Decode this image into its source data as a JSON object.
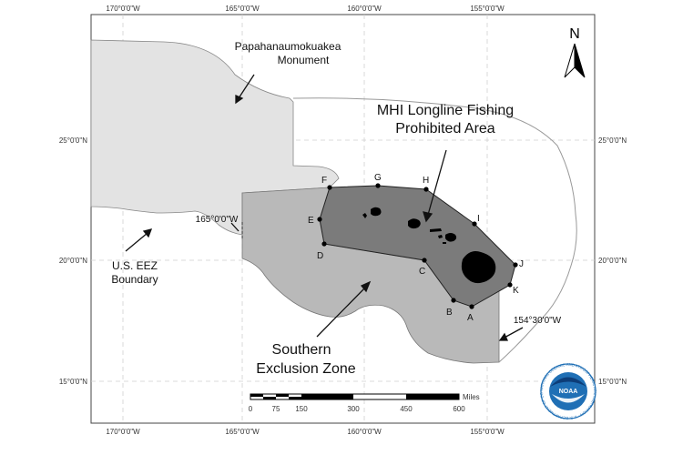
{
  "map": {
    "top_longitude_labels": [
      "170°0'0\"W",
      "165°0'0\"W",
      "160°0'0\"W",
      "155°0'0\"W"
    ],
    "bottom_longitude_labels": [
      "170°0'0\"W",
      "165°0'0\"W",
      "160°0'0\"W",
      "155°0'0\"W"
    ],
    "left_latitude_labels": [
      "25°0'0\"N",
      "20°0'0\"N",
      "15°0'0\"N"
    ],
    "right_latitude_labels": [
      "25°0'0\"N",
      "20°0'0\"N",
      "15°0'0\"N"
    ],
    "north_arrow_label": "N",
    "callouts": {
      "monument_line1": "Papahanaumokuakea",
      "monument_line2": "Monument",
      "mhi_line1": "MHI Longline Fishing",
      "mhi_line2": "Prohibited Area",
      "eez_line1": "U.S. EEZ",
      "eez_line2": "Boundary",
      "sez_line1": "Southern",
      "sez_line2": "Exclusion Zone",
      "lon_165": "165°0'0\"W",
      "lon_1545": "154°30'0\"W"
    },
    "points": [
      "A",
      "B",
      "C",
      "D",
      "E",
      "F",
      "G",
      "H",
      "I",
      "J",
      "K"
    ],
    "scale_bar": {
      "unit": "Miles",
      "labels": [
        "0",
        "75",
        "150",
        "300",
        "450",
        "600"
      ]
    },
    "logo": {
      "text": "NOAA",
      "ring_text": "NATIONAL OCEANIC AND ATMOSPHERIC ADMINISTRATION · U.S. DEPARTMENT OF COMMERCE"
    },
    "colors": {
      "monument_fill": "#e3e3e3",
      "southern_zone_fill": "#b9b9b9",
      "mhi_area_fill": "#7b7b7b",
      "island_fill": "#000000",
      "eez_line": "#999999",
      "noaa_blue": "#1f6fb5"
    }
  }
}
